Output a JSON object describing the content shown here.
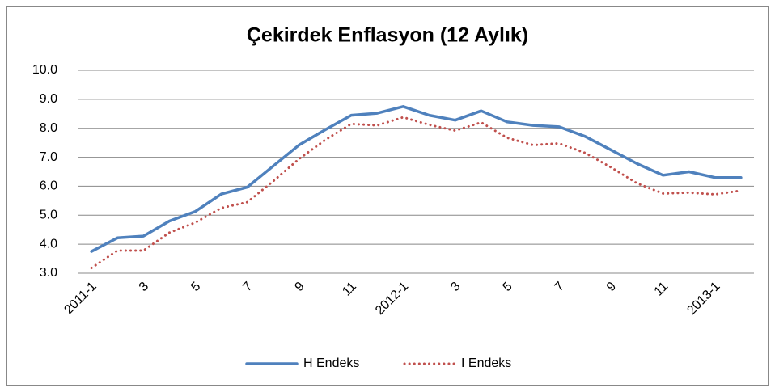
{
  "chart_data": {
    "type": "line",
    "title": "Çekirdek Enflasyon (12 Aylık)",
    "categories": [
      "2011-1",
      null,
      "3",
      null,
      "5",
      null,
      "7",
      null,
      "9",
      null,
      "11",
      null,
      "2012-1",
      null,
      "3",
      null,
      "5",
      null,
      "7",
      null,
      "9",
      null,
      "11",
      null,
      "2013-1",
      null
    ],
    "series": [
      {
        "name": "H Endeks",
        "color": "#4f81bd",
        "style": "solid",
        "values": [
          3.75,
          4.22,
          4.28,
          4.8,
          5.13,
          5.73,
          5.97,
          6.7,
          7.43,
          7.95,
          8.45,
          8.52,
          8.75,
          8.45,
          8.28,
          8.6,
          8.22,
          8.1,
          8.05,
          7.72,
          7.25,
          6.78,
          6.38,
          6.5,
          6.3,
          6.3
        ]
      },
      {
        "name": "I Endeks",
        "color": "#c0504d",
        "style": "dotted",
        "values": [
          3.18,
          3.78,
          3.78,
          4.4,
          4.75,
          5.25,
          5.45,
          6.18,
          6.95,
          7.6,
          8.15,
          8.1,
          8.38,
          8.12,
          7.92,
          8.2,
          7.67,
          7.42,
          7.48,
          7.15,
          6.65,
          6.1,
          5.75,
          5.78,
          5.72,
          5.85
        ]
      }
    ],
    "ylim": [
      3,
      10
    ],
    "yticks": [
      {
        "value": 3,
        "label": "3.0"
      },
      {
        "value": 4,
        "label": "4.0"
      },
      {
        "value": 5,
        "label": "5.0"
      },
      {
        "value": 6,
        "label": "6.0"
      },
      {
        "value": 7,
        "label": "7.0"
      },
      {
        "value": 8,
        "label": "8.0"
      },
      {
        "value": 9,
        "label": "9.0"
      },
      {
        "value": 10,
        "label": "10.0"
      }
    ],
    "grid": true,
    "legend": "bottom"
  }
}
